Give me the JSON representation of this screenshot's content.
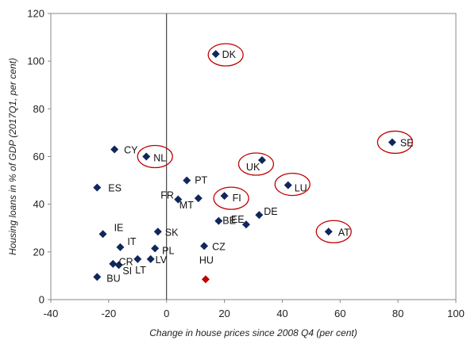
{
  "chart_data": {
    "type": "scatter",
    "title": "",
    "xlabel": "Change in house prices since 2008 Q4 (per cent)",
    "ylabel": "Housing loans in % of GDP (2017Q1, per cent)",
    "xlim": [
      -40,
      100
    ],
    "ylim": [
      0,
      120
    ],
    "xticks": [
      -40,
      -20,
      0,
      20,
      40,
      60,
      80,
      100
    ],
    "yticks": [
      0,
      20,
      40,
      60,
      80,
      100,
      120
    ],
    "grid": false,
    "colors": {
      "default": "#10275C",
      "highlight": "#C00000",
      "circle": "#C00000"
    },
    "points": [
      {
        "label": "DK",
        "x": 17,
        "y": 103,
        "circled": true
      },
      {
        "label": "SE",
        "x": 78,
        "y": 66,
        "circled": true
      },
      {
        "label": "CY",
        "x": -18,
        "y": 63,
        "circled": false
      },
      {
        "label": "NL",
        "x": -7,
        "y": 60,
        "circled": true
      },
      {
        "label": "UK",
        "x": 33,
        "y": 58.5,
        "circled": true
      },
      {
        "label": "PT",
        "x": 7,
        "y": 50,
        "circled": false
      },
      {
        "label": "LU",
        "x": 42,
        "y": 48,
        "circled": true
      },
      {
        "label": "ES",
        "x": -24,
        "y": 47,
        "circled": false
      },
      {
        "label": "FI",
        "x": 20,
        "y": 43.5,
        "circled": true
      },
      {
        "label": "MT",
        "x": 11,
        "y": 42.5,
        "circled": false
      },
      {
        "label": "FR",
        "x": 4,
        "y": 42,
        "circled": false
      },
      {
        "label": "DE",
        "x": 32,
        "y": 35.5,
        "circled": false
      },
      {
        "label": "BE",
        "x": 18,
        "y": 33,
        "circled": false
      },
      {
        "label": "EE",
        "x": 27.5,
        "y": 31.5,
        "circled": false
      },
      {
        "label": "AT",
        "x": 56,
        "y": 28.5,
        "circled": true
      },
      {
        "label": "SK",
        "x": -3,
        "y": 28.5,
        "circled": false
      },
      {
        "label": "IE",
        "x": -22,
        "y": 27.5,
        "circled": false
      },
      {
        "label": "CZ",
        "x": 13,
        "y": 22.5,
        "circled": false
      },
      {
        "label": "IT",
        "x": -16,
        "y": 22,
        "circled": false
      },
      {
        "label": "PL",
        "x": -4,
        "y": 21.5,
        "circled": false
      },
      {
        "label": "LV",
        "x": -5.5,
        "y": 17,
        "circled": false
      },
      {
        "label": "LT",
        "x": -10,
        "y": 17,
        "circled": false
      },
      {
        "label": "CR",
        "x": -16.5,
        "y": 14.5,
        "circled": false
      },
      {
        "label": "SI",
        "x": -18.5,
        "y": 15,
        "circled": false
      },
      {
        "label": "BU",
        "x": -24,
        "y": 9.5,
        "circled": false
      },
      {
        "label": "HU",
        "x": 13.5,
        "y": 8.5,
        "circled": false,
        "highlight": true
      }
    ]
  }
}
